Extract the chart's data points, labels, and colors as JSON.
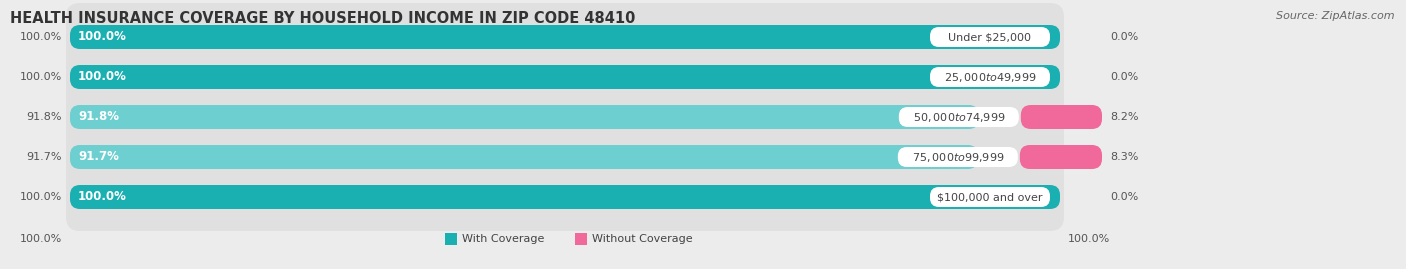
{
  "title": "HEALTH INSURANCE COVERAGE BY HOUSEHOLD INCOME IN ZIP CODE 48410",
  "source": "Source: ZipAtlas.com",
  "categories": [
    "Under $25,000",
    "$25,000 to $49,999",
    "$50,000 to $74,999",
    "$75,000 to $99,999",
    "$100,000 and over"
  ],
  "with_coverage": [
    100.0,
    100.0,
    91.8,
    91.7,
    100.0
  ],
  "without_coverage": [
    0.0,
    0.0,
    8.2,
    8.3,
    0.0
  ],
  "color_with_full": "#1aafb0",
  "color_with_partial": "#6dcfcf",
  "color_without_low": "#f9b8cc",
  "color_without_high": "#f0699a",
  "bg_color": "#ececec",
  "bar_bg_color": "#dedede",
  "row_bg_color": "#e8e8e8",
  "legend_label_with": "With Coverage",
  "legend_label_without": "Without Coverage",
  "bottom_left_label": "100.0%",
  "bottom_right_label": "100.0%",
  "title_fontsize": 10.5,
  "source_fontsize": 8,
  "label_fontsize": 8,
  "category_fontsize": 8
}
